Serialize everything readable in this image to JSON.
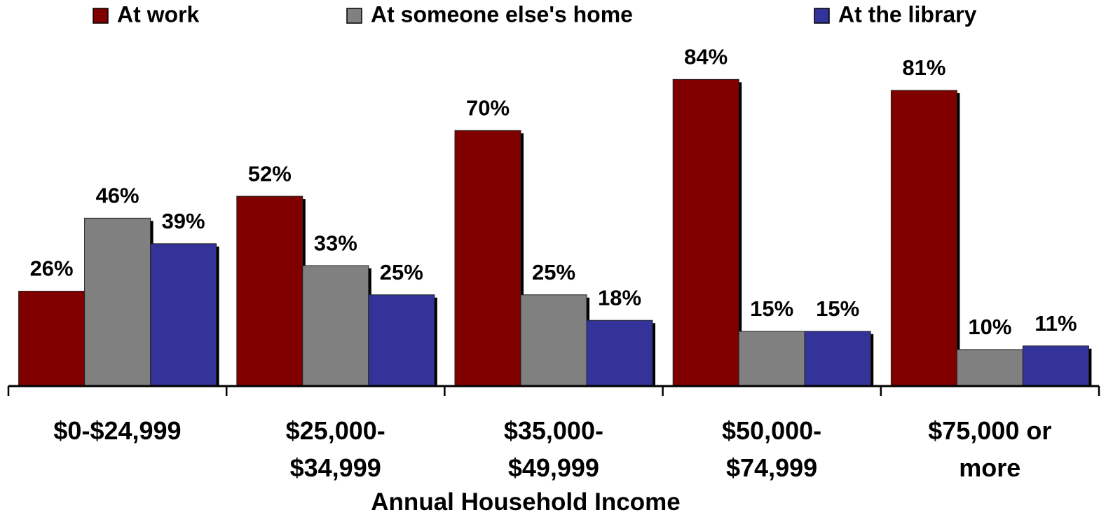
{
  "chart_data": {
    "type": "bar",
    "x_label": "Annual Household Income",
    "categories": [
      "$0-$24,999",
      "$25,000-\n$34,999",
      "$35,000-\n$49,999",
      "$50,000-\n$74,999",
      "$75,000 or\nmore"
    ],
    "series": [
      {
        "name": "At work",
        "color": "#800000",
        "values": [
          26,
          52,
          70,
          84,
          81
        ],
        "value_labels": [
          "26%",
          "52%",
          "70%",
          "84%",
          "81%"
        ]
      },
      {
        "name": "At someone else's home",
        "color": "#808080",
        "values": [
          46,
          33,
          25,
          15,
          10
        ],
        "value_labels": [
          "46%",
          "33%",
          "25%",
          "15%",
          "10%"
        ]
      },
      {
        "name": "At the library",
        "color": "#333399",
        "values": [
          39,
          25,
          18,
          15,
          11
        ],
        "value_labels": [
          "39%",
          "25%",
          "18%",
          "15%",
          "11%"
        ]
      }
    ],
    "ylim": [
      0,
      100
    ],
    "legend": "top"
  }
}
